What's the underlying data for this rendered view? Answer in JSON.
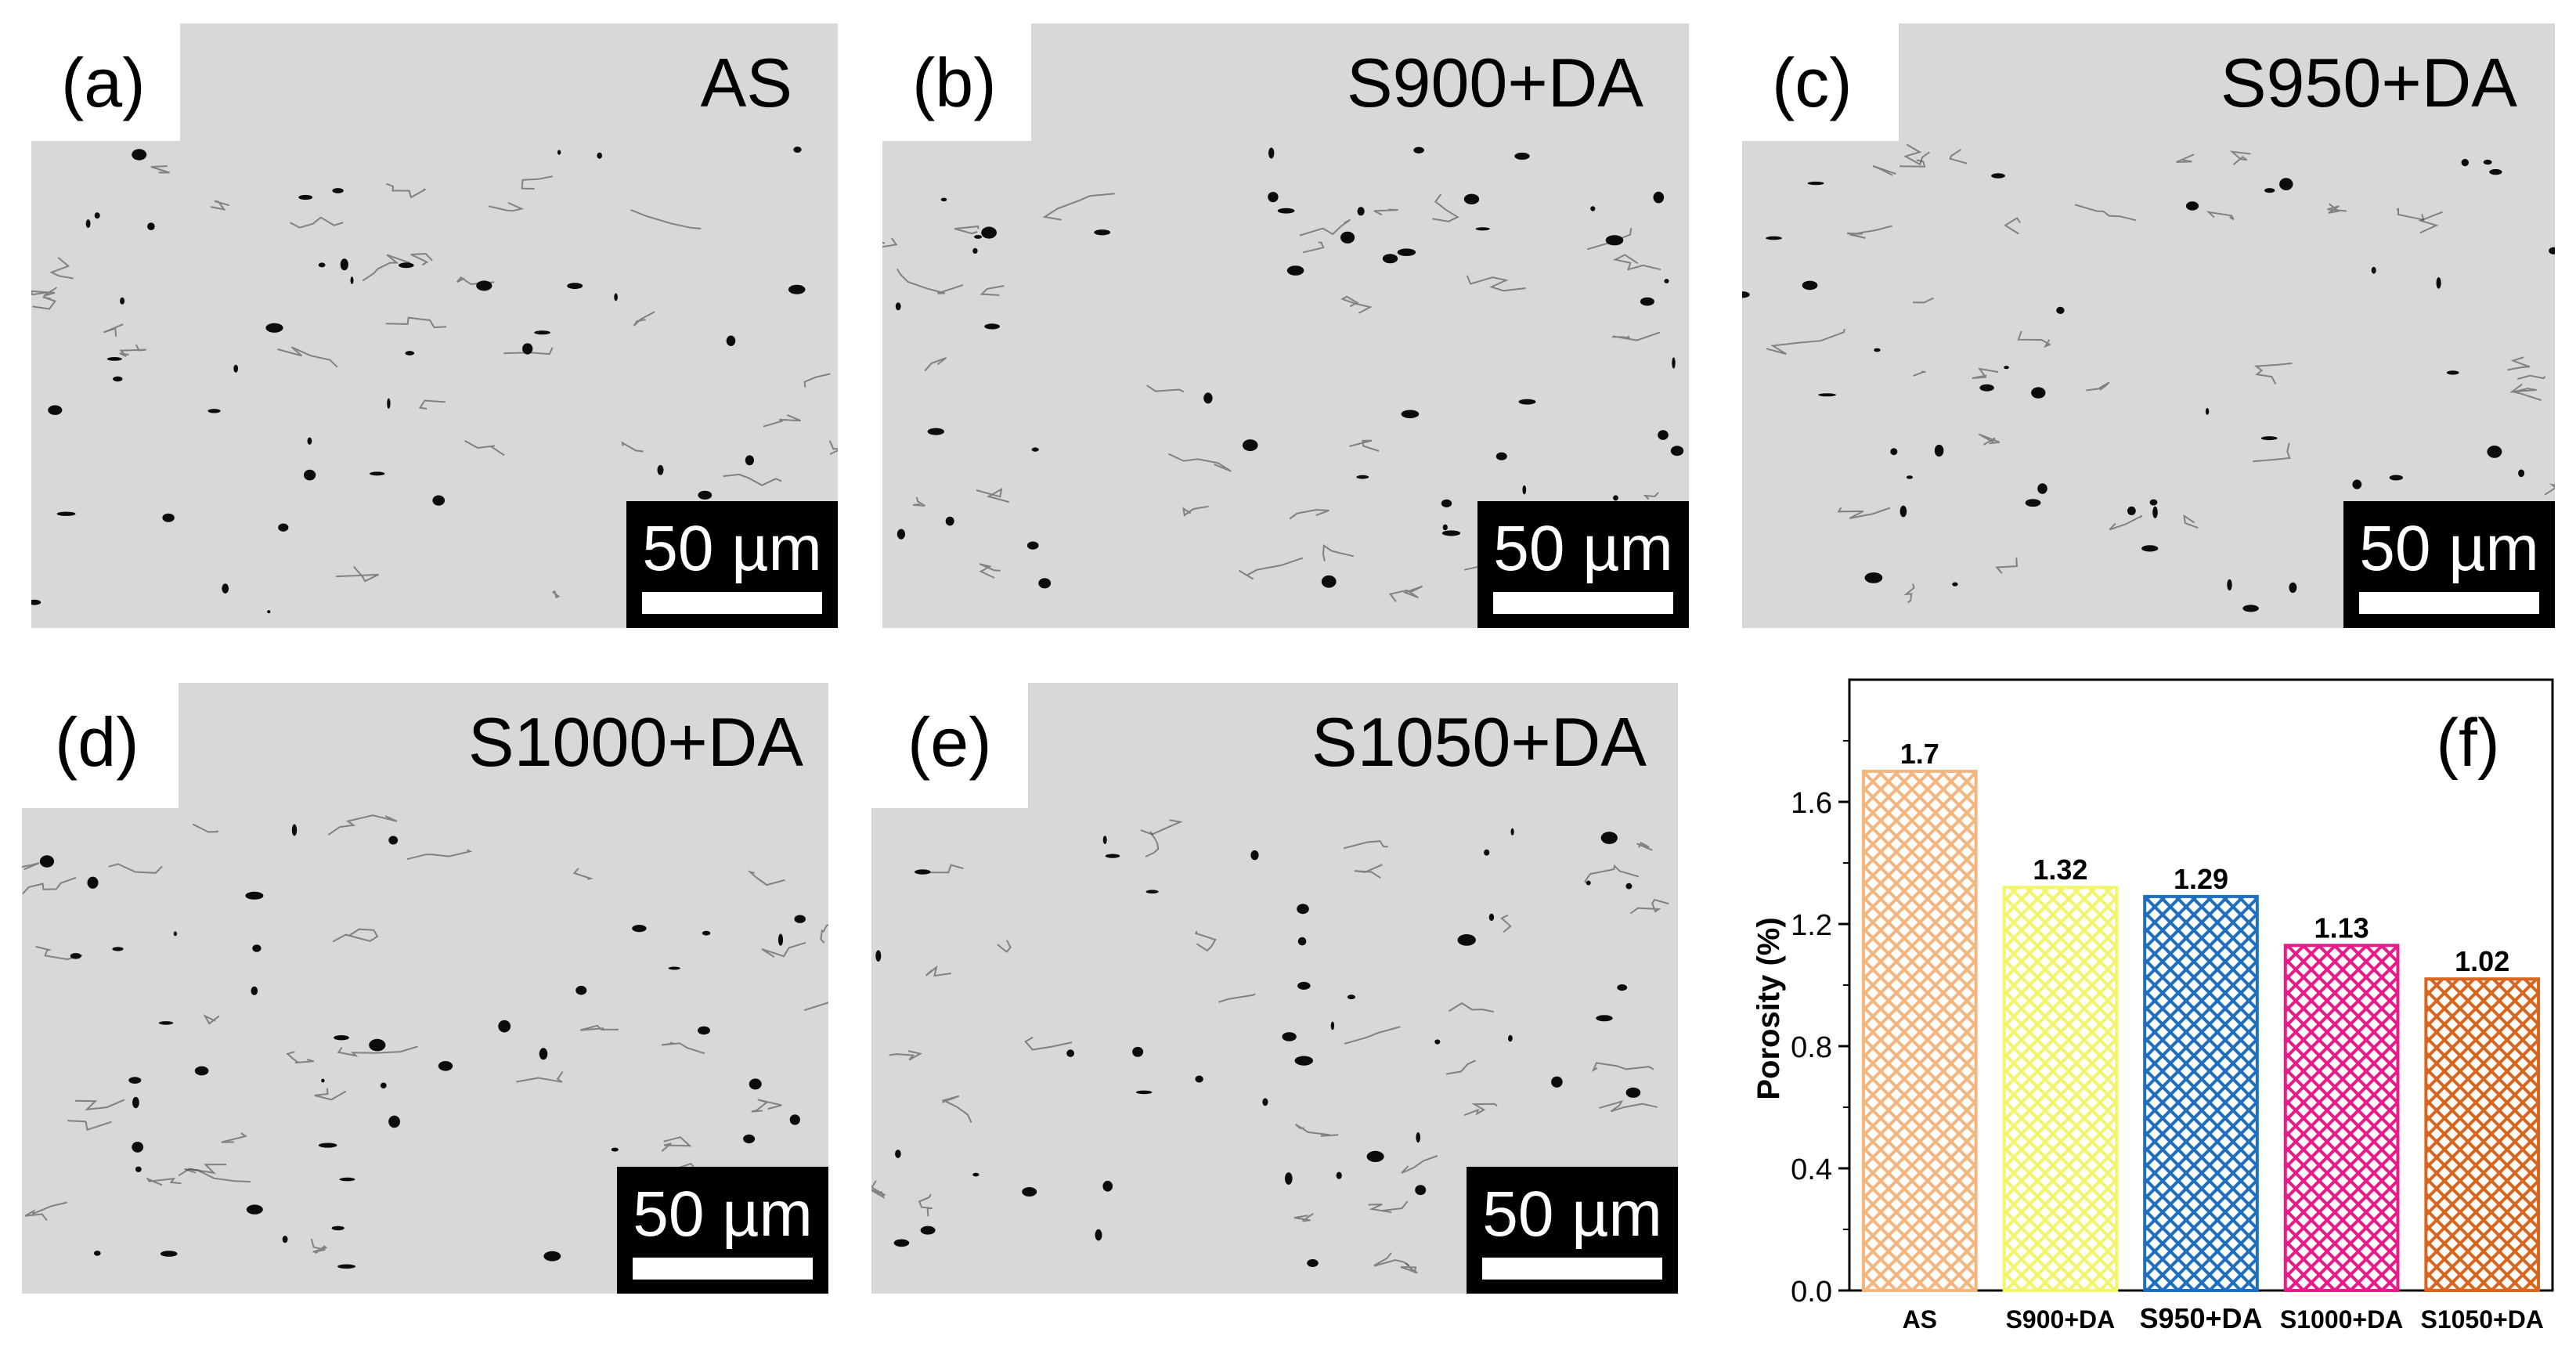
{
  "panels": [
    {
      "label": "(a)",
      "condition": "AS",
      "scale": "50 µm"
    },
    {
      "label": "(b)",
      "condition": "S900+DA",
      "scale": "50 µm"
    },
    {
      "label": "(c)",
      "condition": "S950+DA",
      "scale": "50 µm"
    },
    {
      "label": "(d)",
      "condition": "S1000+DA",
      "scale": "50 µm"
    },
    {
      "label": "(e)",
      "condition": "S1050+DA",
      "scale": "50 µm"
    }
  ],
  "chart_data": {
    "type": "bar",
    "panel_label": "(f)",
    "categories": [
      "AS",
      "S900+DA",
      "S950+DA",
      "S1000+DA",
      "S1050+DA"
    ],
    "values": [
      1.7,
      1.32,
      1.29,
      1.13,
      1.02
    ],
    "data_labels": [
      "1.7",
      "1.32",
      "1.29",
      "1.13",
      "1.02"
    ],
    "colors": [
      "#f5b57e",
      "#f2f56a",
      "#1f6fc0",
      "#ea1a8a",
      "#d9661f"
    ],
    "ylabel": "Porosity (%)",
    "xlabel": "",
    "ylim": [
      0,
      2.0
    ],
    "yticks": [
      0.0,
      0.4,
      0.8,
      1.2,
      1.6
    ],
    "ytick_labels": [
      "0.0",
      "0.4",
      "0.8",
      "1.2",
      "1.6"
    ],
    "pattern": "crosshatch",
    "grid": false
  }
}
